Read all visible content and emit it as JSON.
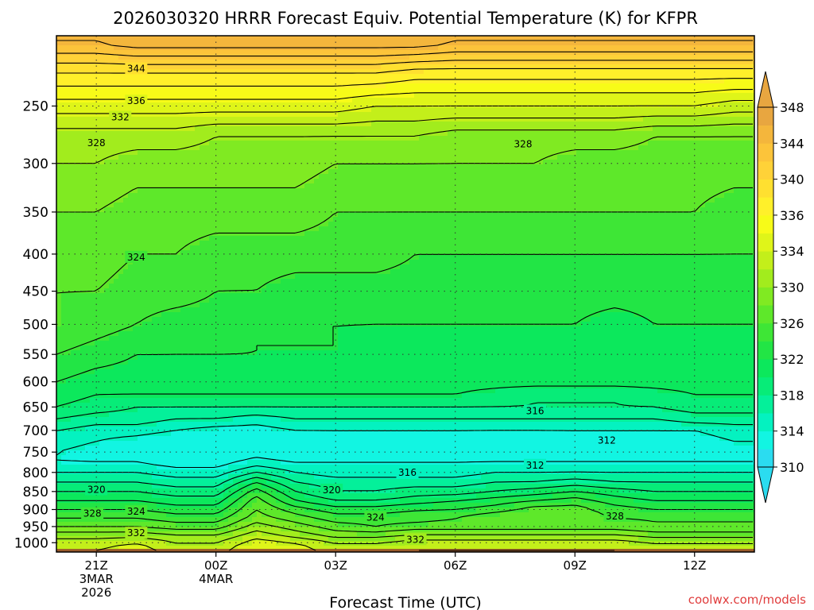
{
  "chart_data": {
    "type": "heatmap",
    "title": "2026030320 HRRR Forecast Equiv. Potential Temperature (K) for KFPR",
    "xlabel": "Forecast Time (UTC)",
    "ylabel": "",
    "y_scale": "log",
    "y_axis_reversed": true,
    "ylim": [
      1030,
      200
    ],
    "xlim_hours_utc": [
      20,
      37.5
    ],
    "y_ticks": [
      250,
      300,
      350,
      400,
      450,
      500,
      550,
      600,
      650,
      700,
      750,
      800,
      850,
      900,
      950,
      1000
    ],
    "x_ticks": [
      {
        "hour": 21,
        "label": "21Z",
        "line2": "3MAR",
        "line3": "2026"
      },
      {
        "hour": 24,
        "label": "00Z",
        "line2": "4MAR",
        "line3": ""
      },
      {
        "hour": 27,
        "label": "03Z",
        "line2": "",
        "line3": ""
      },
      {
        "hour": 30,
        "label": "06Z",
        "line2": "",
        "line3": ""
      },
      {
        "hour": 33,
        "label": "09Z",
        "line2": "",
        "line3": ""
      },
      {
        "hour": 36,
        "label": "12Z",
        "line2": "",
        "line3": ""
      }
    ],
    "grid": true,
    "colorbar": {
      "position": "right",
      "levels": [
        310,
        312,
        314,
        316,
        318,
        320,
        322,
        324,
        326,
        328,
        330,
        332,
        334,
        336,
        338,
        340,
        342,
        344,
        346,
        348
      ],
      "tick_labels": [
        310,
        314,
        318,
        322,
        326,
        330,
        334,
        336,
        340,
        344,
        348
      ],
      "colors": [
        "#2bdcf0",
        "#12f5e2",
        "#04f2c0",
        "#04f09a",
        "#07ec78",
        "#0ce85c",
        "#22e545",
        "#3ee636",
        "#5ee82a",
        "#80ea22",
        "#a2ec1d",
        "#c3ef1a",
        "#dff519",
        "#f7fb18",
        "#fff02a",
        "#ffe030",
        "#ffd238",
        "#fcc43a",
        "#f4b63c",
        "#e8a640"
      ],
      "extend": "both"
    },
    "profile_levels_hpa": [
      1020,
      1000,
      975,
      950,
      925,
      900,
      875,
      850,
      825,
      800,
      775,
      750,
      725,
      700,
      675,
      650,
      625,
      600,
      550,
      500,
      450,
      400,
      350,
      300,
      275,
      250,
      225,
      205
    ],
    "profile_times_hours": [
      20,
      21,
      22,
      23,
      24,
      25,
      26,
      27,
      28,
      29,
      30,
      31,
      32,
      33,
      34,
      35,
      36,
      37
    ],
    "theta_e_k": [
      [
        333,
        334,
        335,
        333,
        333,
        336,
        335,
        333,
        333,
        334,
        334,
        334,
        334,
        334,
        334,
        333,
        333,
        333
      ],
      [
        333,
        333,
        334,
        332,
        332,
        335,
        334,
        332,
        332,
        333,
        333,
        333,
        333,
        333,
        333,
        332,
        332,
        332
      ],
      [
        331,
        331,
        331,
        330,
        330,
        333,
        331,
        329,
        329,
        330,
        330,
        330,
        330,
        330,
        330,
        329,
        329,
        329
      ],
      [
        328,
        328,
        328,
        327,
        327,
        331,
        329,
        327,
        326,
        327,
        327,
        327,
        327,
        327,
        327,
        326,
        326,
        326
      ],
      [
        326,
        326,
        326,
        325,
        325,
        329,
        327,
        325,
        325,
        325,
        326,
        328,
        328,
        327,
        326,
        326,
        326,
        326
      ],
      [
        324,
        324,
        324,
        323,
        323,
        328,
        325,
        323,
        323,
        324,
        324,
        325,
        327,
        327,
        325,
        324,
        324,
        324
      ],
      [
        322,
        322,
        322,
        321,
        321,
        327,
        322,
        320,
        320,
        321,
        322,
        323,
        324,
        325,
        323,
        322,
        322,
        322
      ],
      [
        320,
        320,
        320,
        319,
        319,
        325,
        320,
        318,
        318,
        319,
        319,
        320,
        321,
        322,
        321,
        320,
        320,
        320
      ],
      [
        318,
        318,
        318,
        317,
        317,
        322,
        318,
        317,
        317,
        317,
        317,
        318,
        318,
        319,
        318,
        318,
        318,
        318
      ],
      [
        316,
        316,
        316,
        315,
        315,
        318,
        316,
        315,
        315,
        315,
        315,
        316,
        316,
        316,
        316,
        316,
        316,
        316
      ],
      [
        314,
        314,
        314,
        313,
        313,
        315,
        314,
        314,
        314,
        314,
        314,
        314,
        314,
        314,
        314,
        314,
        314,
        314
      ],
      [
        314,
        313,
        313,
        312,
        312,
        313,
        312,
        313,
        313,
        313,
        313,
        313,
        313,
        313,
        313,
        313,
        313,
        313
      ],
      [
        315,
        314,
        313,
        312,
        312,
        312,
        312,
        313,
        313,
        313,
        313,
        312,
        312,
        313,
        313,
        313,
        313,
        314
      ],
      [
        316,
        315,
        315,
        314,
        313,
        313,
        314,
        314,
        314,
        314,
        314,
        314,
        314,
        314,
        314,
        314,
        314,
        315
      ],
      [
        318,
        317,
        317,
        316,
        316,
        315,
        316,
        316,
        316,
        316,
        316,
        316,
        316,
        316,
        316,
        316,
        317,
        317
      ],
      [
        320,
        319,
        318,
        318,
        318,
        318,
        318,
        318,
        318,
        318,
        318,
        318,
        318,
        318,
        318,
        318,
        319,
        319
      ],
      [
        321,
        320,
        320,
        320,
        320,
        320,
        320,
        320,
        320,
        320,
        320,
        319,
        318,
        318,
        318,
        319,
        320,
        320
      ],
      [
        322,
        321,
        321,
        321,
        321,
        321,
        321,
        321,
        321,
        321,
        321,
        321,
        321,
        321,
        321,
        321,
        321,
        321
      ],
      [
        324,
        323,
        322,
        322,
        322,
        322,
        322,
        322,
        321,
        321,
        321,
        321,
        321,
        321,
        321,
        321,
        321,
        321
      ],
      [
        326,
        325,
        324,
        323,
        323,
        322,
        322,
        322,
        322,
        322,
        322,
        322,
        322,
        322,
        321,
        322,
        322,
        322
      ],
      [
        326,
        326,
        325,
        325,
        324,
        324,
        323,
        323,
        323,
        323,
        323,
        323,
        323,
        323,
        323,
        323,
        323,
        323
      ],
      [
        327,
        327,
        326,
        326,
        325,
        325,
        325,
        325,
        325,
        324,
        324,
        324,
        324,
        324,
        324,
        324,
        324,
        324
      ],
      [
        328,
        328,
        327,
        327,
        327,
        327,
        327,
        326,
        326,
        326,
        326,
        326,
        326,
        326,
        326,
        326,
        326,
        325
      ],
      [
        330,
        330,
        329,
        329,
        329,
        329,
        329,
        328,
        328,
        328,
        328,
        328,
        328,
        327,
        327,
        327,
        327,
        327
      ],
      [
        331,
        331,
        331,
        331,
        330,
        330,
        330,
        330,
        330,
        330,
        329,
        329,
        329,
        329,
        329,
        328,
        328,
        328
      ],
      [
        335,
        335,
        335,
        335,
        335,
        335,
        335,
        335,
        334,
        334,
        334,
        334,
        334,
        334,
        334,
        334,
        334,
        333
      ],
      [
        340,
        340,
        340,
        340,
        340,
        340,
        340,
        340,
        340,
        339,
        339,
        339,
        339,
        339,
        339,
        339,
        339,
        339
      ],
      [
        346,
        346,
        347,
        347,
        347,
        347,
        347,
        347,
        347,
        347,
        346,
        346,
        346,
        346,
        346,
        346,
        346,
        346
      ]
    ],
    "contour_labels": [
      {
        "text": "344",
        "hour": 22.0,
        "hpa": 222
      },
      {
        "text": "336",
        "hour": 22.0,
        "hpa": 246
      },
      {
        "text": "332",
        "hour": 21.6,
        "hpa": 259
      },
      {
        "text": "328",
        "hour": 21.0,
        "hpa": 281
      },
      {
        "text": "328",
        "hour": 31.7,
        "hpa": 282
      },
      {
        "text": "324",
        "hour": 22.0,
        "hpa": 404
      },
      {
        "text": "316",
        "hour": 32.0,
        "hpa": 658
      },
      {
        "text": "312",
        "hour": 33.8,
        "hpa": 723
      },
      {
        "text": "312",
        "hour": 32.0,
        "hpa": 782
      },
      {
        "text": "316",
        "hour": 28.8,
        "hpa": 800
      },
      {
        "text": "320",
        "hour": 21.0,
        "hpa": 845
      },
      {
        "text": "320",
        "hour": 26.9,
        "hpa": 846
      },
      {
        "text": "324",
        "hour": 22.0,
        "hpa": 906
      },
      {
        "text": "324",
        "hour": 28.0,
        "hpa": 923
      },
      {
        "text": "328",
        "hour": 20.9,
        "hpa": 912
      },
      {
        "text": "328",
        "hour": 34.0,
        "hpa": 919
      },
      {
        "text": "332",
        "hour": 22.0,
        "hpa": 970
      },
      {
        "text": "332",
        "hour": 29.0,
        "hpa": 990
      }
    ],
    "ground_color": "#9a5a2a"
  },
  "credit": "coolwx.com/models",
  "credit_color": "#e03c3c"
}
